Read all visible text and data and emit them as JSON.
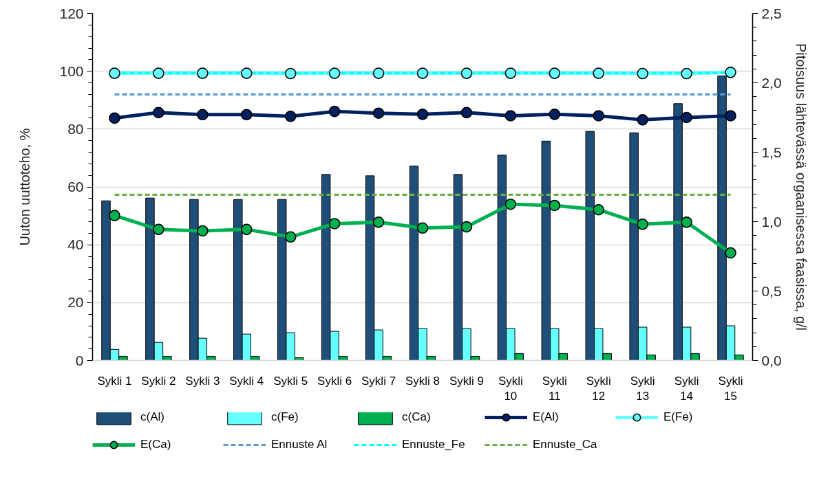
{
  "chart_data": {
    "type": "bar",
    "categories": [
      "Sykli 1",
      "Sykli 2",
      "Sykli 3",
      "Sykli 4",
      "Sykli 5",
      "Sykli 6",
      "Sykli 7",
      "Sykli 8",
      "Sykli 9",
      "Sykli 10",
      "Sykli 11",
      "Sykli 12",
      "Sykli 13",
      "Sykli 14",
      "Sykli 15"
    ],
    "series": [
      {
        "name": "c(Al)",
        "axis": "y2",
        "color": "#1f4e79",
        "values": [
          1.15,
          1.17,
          1.16,
          1.16,
          1.16,
          1.34,
          1.33,
          1.4,
          1.34,
          1.48,
          1.58,
          1.65,
          1.64,
          1.85,
          2.05
        ]
      },
      {
        "name": "c(Fe)",
        "axis": "y2",
        "color": "#66ffff",
        "values": [
          0.08,
          0.13,
          0.16,
          0.19,
          0.2,
          0.21,
          0.22,
          0.23,
          0.23,
          0.23,
          0.23,
          0.23,
          0.24,
          0.24,
          0.25
        ]
      },
      {
        "name": "c(Ca)",
        "axis": "y2",
        "color": "#00b050",
        "values": [
          0.03,
          0.03,
          0.03,
          0.03,
          0.02,
          0.03,
          0.03,
          0.03,
          0.03,
          0.05,
          0.05,
          0.05,
          0.04,
          0.05,
          0.04
        ]
      },
      {
        "name": "E(Al)",
        "type": "line",
        "color": "#002060",
        "marker": "circle",
        "line_style": "solid",
        "values": [
          83.8,
          85.7,
          85.0,
          85.0,
          84.4,
          86.1,
          85.5,
          85.1,
          85.7,
          84.6,
          85.1,
          84.6,
          83.2,
          84.0,
          84.6
        ]
      },
      {
        "name": "E(Fe)",
        "type": "line",
        "color": "#66ffff",
        "marker": "circle",
        "line_style": "solid",
        "values": [
          99.3,
          99.3,
          99.3,
          99.3,
          99.2,
          99.3,
          99.3,
          99.3,
          99.3,
          99.3,
          99.3,
          99.3,
          99.2,
          99.2,
          99.6
        ]
      },
      {
        "name": "E(Ca)",
        "type": "line",
        "color": "#00b050",
        "marker": "circle",
        "line_style": "solid",
        "values": [
          50.1,
          45.3,
          44.8,
          45.3,
          42.7,
          47.3,
          47.8,
          45.8,
          46.2,
          54.0,
          53.6,
          52.1,
          47.1,
          47.8,
          37.2
        ]
      },
      {
        "name": "Ennuste Al",
        "type": "line",
        "color": "#5b9bd5",
        "marker": "none",
        "line_style": "dashed",
        "values": [
          92,
          92,
          92,
          92,
          92,
          92,
          92,
          92,
          92,
          92,
          92,
          92,
          92,
          92,
          92
        ]
      },
      {
        "name": "Ennuste_Fe",
        "type": "line",
        "color": "#00ffff",
        "marker": "none",
        "line_style": "dashed",
        "values": [
          99.4,
          99.4,
          99.4,
          99.4,
          99.4,
          99.4,
          99.4,
          99.4,
          99.4,
          99.4,
          99.4,
          99.4,
          99.4,
          99.4,
          99.4
        ]
      },
      {
        "name": "Ennuste_Ca",
        "type": "line",
        "color": "#70ad47",
        "marker": "none",
        "line_style": "dashed",
        "values": [
          57.3,
          57.3,
          57.3,
          57.3,
          57.3,
          57.3,
          57.3,
          57.3,
          57.3,
          57.3,
          57.3,
          57.3,
          57.3,
          57.3,
          57.3
        ]
      }
    ],
    "ylabel": "Uuton uuttoteho, %",
    "y2label": "Pitoisuus lähtevässä orgaanisessa faasissa, g/l",
    "ylim": [
      0,
      120
    ],
    "yticks": [
      0,
      {
        "value": 4,
        "label": null
      },
      {
        "value": 8,
        "label": null
      },
      {
        "value": 12,
        "label": null
      },
      {
        "value": 16,
        "label": null
      },
      20,
      {
        "value": 24,
        "label": null
      },
      {
        "value": 28,
        "label": null
      },
      {
        "value": 32,
        "label": null
      },
      {
        "value": 36,
        "label": null
      },
      40,
      {
        "value": 44,
        "label": null
      },
      {
        "value": 48,
        "label": null
      },
      {
        "value": 52,
        "label": null
      },
      {
        "value": 56,
        "label": null
      },
      60,
      {
        "value": 64,
        "label": null
      },
      {
        "value": 68,
        "label": null
      },
      {
        "value": 72,
        "label": null
      },
      {
        "value": 76,
        "label": null
      },
      80,
      {
        "value": 84,
        "label": null
      },
      {
        "value": 88,
        "label": null
      },
      {
        "value": 92,
        "label": null
      },
      {
        "value": 96,
        "label": null
      },
      100,
      {
        "value": 104,
        "label": null
      },
      {
        "value": 108,
        "label": null
      },
      {
        "value": 112,
        "label": null
      },
      {
        "value": 116,
        "label": null
      },
      120
    ],
    "y2lim": [
      0,
      2.5
    ],
    "y2ticks": [
      {
        "value": 0,
        "label": "0,0"
      },
      {
        "value": 0.1,
        "label": null
      },
      {
        "value": 0.2,
        "label": null
      },
      {
        "value": 0.3,
        "label": null
      },
      {
        "value": 0.4,
        "label": null
      },
      {
        "value": 0.5,
        "label": "0,5"
      },
      {
        "value": 0.6,
        "label": null
      },
      {
        "value": 0.7,
        "label": null
      },
      {
        "value": 0.8,
        "label": null
      },
      {
        "value": 0.9,
        "label": null
      },
      {
        "value": 1.0,
        "label": "1,0"
      },
      {
        "value": 1.1,
        "label": null
      },
      {
        "value": 1.2,
        "label": null
      },
      {
        "value": 1.3,
        "label": null
      },
      {
        "value": 1.4,
        "label": null
      },
      {
        "value": 1.5,
        "label": "1,5"
      },
      {
        "value": 1.6,
        "label": null
      },
      {
        "value": 1.7,
        "label": null
      },
      {
        "value": 1.8,
        "label": null
      },
      {
        "value": 1.9,
        "label": null
      },
      {
        "value": 2.0,
        "label": "2,0"
      },
      {
        "value": 2.1,
        "label": null
      },
      {
        "value": 2.2,
        "label": null
      },
      {
        "value": 2.3,
        "label": null
      },
      {
        "value": 2.4,
        "label": null
      },
      {
        "value": 2.5,
        "label": "2,5"
      }
    ],
    "grid": "y",
    "legend": "bottom"
  }
}
